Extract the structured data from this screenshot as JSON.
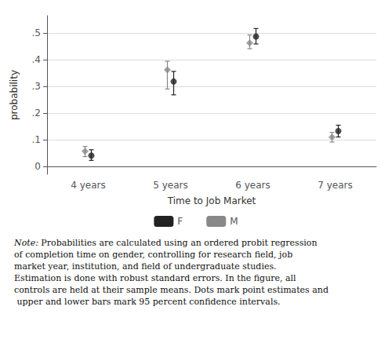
{
  "chart_data": {
    "type": "scatter",
    "xlabel": "Time to Job Market",
    "ylabel": "probability",
    "categories": [
      "4 years",
      "5 years",
      "6 years",
      "7 years"
    ],
    "series": [
      {
        "name": "F",
        "color": "#222222",
        "marker": "circle",
        "values": [
          0.04,
          0.318,
          0.487,
          0.132
        ],
        "error_low": [
          0.018,
          0.05,
          0.028,
          0.022
        ],
        "error_high": [
          0.022,
          0.038,
          0.03,
          0.022
        ]
      },
      {
        "name": "M",
        "color": "#888888",
        "marker": "diamond",
        "values": [
          0.056,
          0.362,
          0.463,
          0.109
        ],
        "error_low": [
          0.02,
          0.072,
          0.022,
          0.018
        ],
        "error_high": [
          0.018,
          0.032,
          0.03,
          0.018
        ]
      }
    ],
    "ylim": [
      -0.03,
      0.565
    ],
    "yticks": [
      0,
      {
        "value": 0.1,
        "label": ".1"
      },
      {
        "value": 0.2,
        "label": ".2"
      },
      {
        "value": 0.3,
        "label": ".3"
      },
      {
        "value": 0.4,
        "label": ".4"
      },
      {
        "value": 0.5,
        "label": ".5"
      }
    ],
    "grid": true,
    "legend": "bottom",
    "annotations": [
      "Note:",
      "Probabilities are calculated using an ordered probit regression of completion time on gender, controlling for research field, job market year, institution, and field of undergraduate studies. Estimation is done with robust standard errors. In the figure, all controls are held at their sample means. Dots mark point estimates and upper and lower bars mark 95 percent confidence intervals."
    ]
  }
}
